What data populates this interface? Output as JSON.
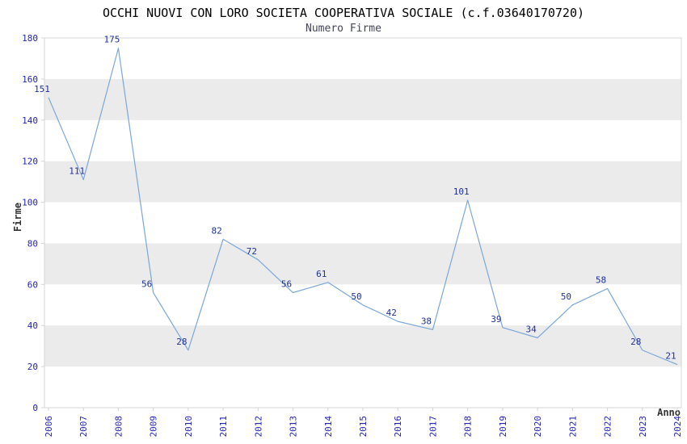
{
  "title": "OCCHI NUOVI CON LORO SOCIETA COOPERATIVA SOCIALE (c.f.03640170720)",
  "subtitle": "Numero Firme",
  "chart_data": {
    "type": "line",
    "title": "OCCHI NUOVI CON LORO SOCIETA COOPERATIVA SOCIALE (c.f.03640170720)",
    "subtitle": "Numero Firme",
    "x": [
      2006,
      2007,
      2008,
      2009,
      2010,
      2011,
      2012,
      2013,
      2014,
      2015,
      2016,
      2017,
      2018,
      2019,
      2020,
      2021,
      2022,
      2023,
      2024
    ],
    "values": [
      151,
      111,
      175,
      56,
      28,
      82,
      72,
      56,
      61,
      50,
      42,
      38,
      101,
      39,
      34,
      50,
      58,
      28,
      21
    ],
    "xlabel": "Anno",
    "ylabel": "Firme",
    "ylim": [
      0,
      180
    ],
    "ytick_step": 20,
    "grid": "alternating-horizontal-bands",
    "band_ranges": [
      [
        20,
        40
      ],
      [
        60,
        80
      ],
      [
        100,
        120
      ],
      [
        140,
        160
      ]
    ],
    "legend": "none",
    "point_labels_visible": true,
    "colors": {
      "line": "#7ba7d7",
      "band": "#ebebeb",
      "plot_border": "#d4d4d4",
      "tick_label": "#2323b8",
      "point_label": "#1f3099",
      "title": "#000000",
      "subtitle": "#44445a",
      "axis_title": "#333333",
      "background": "#ffffff"
    }
  }
}
